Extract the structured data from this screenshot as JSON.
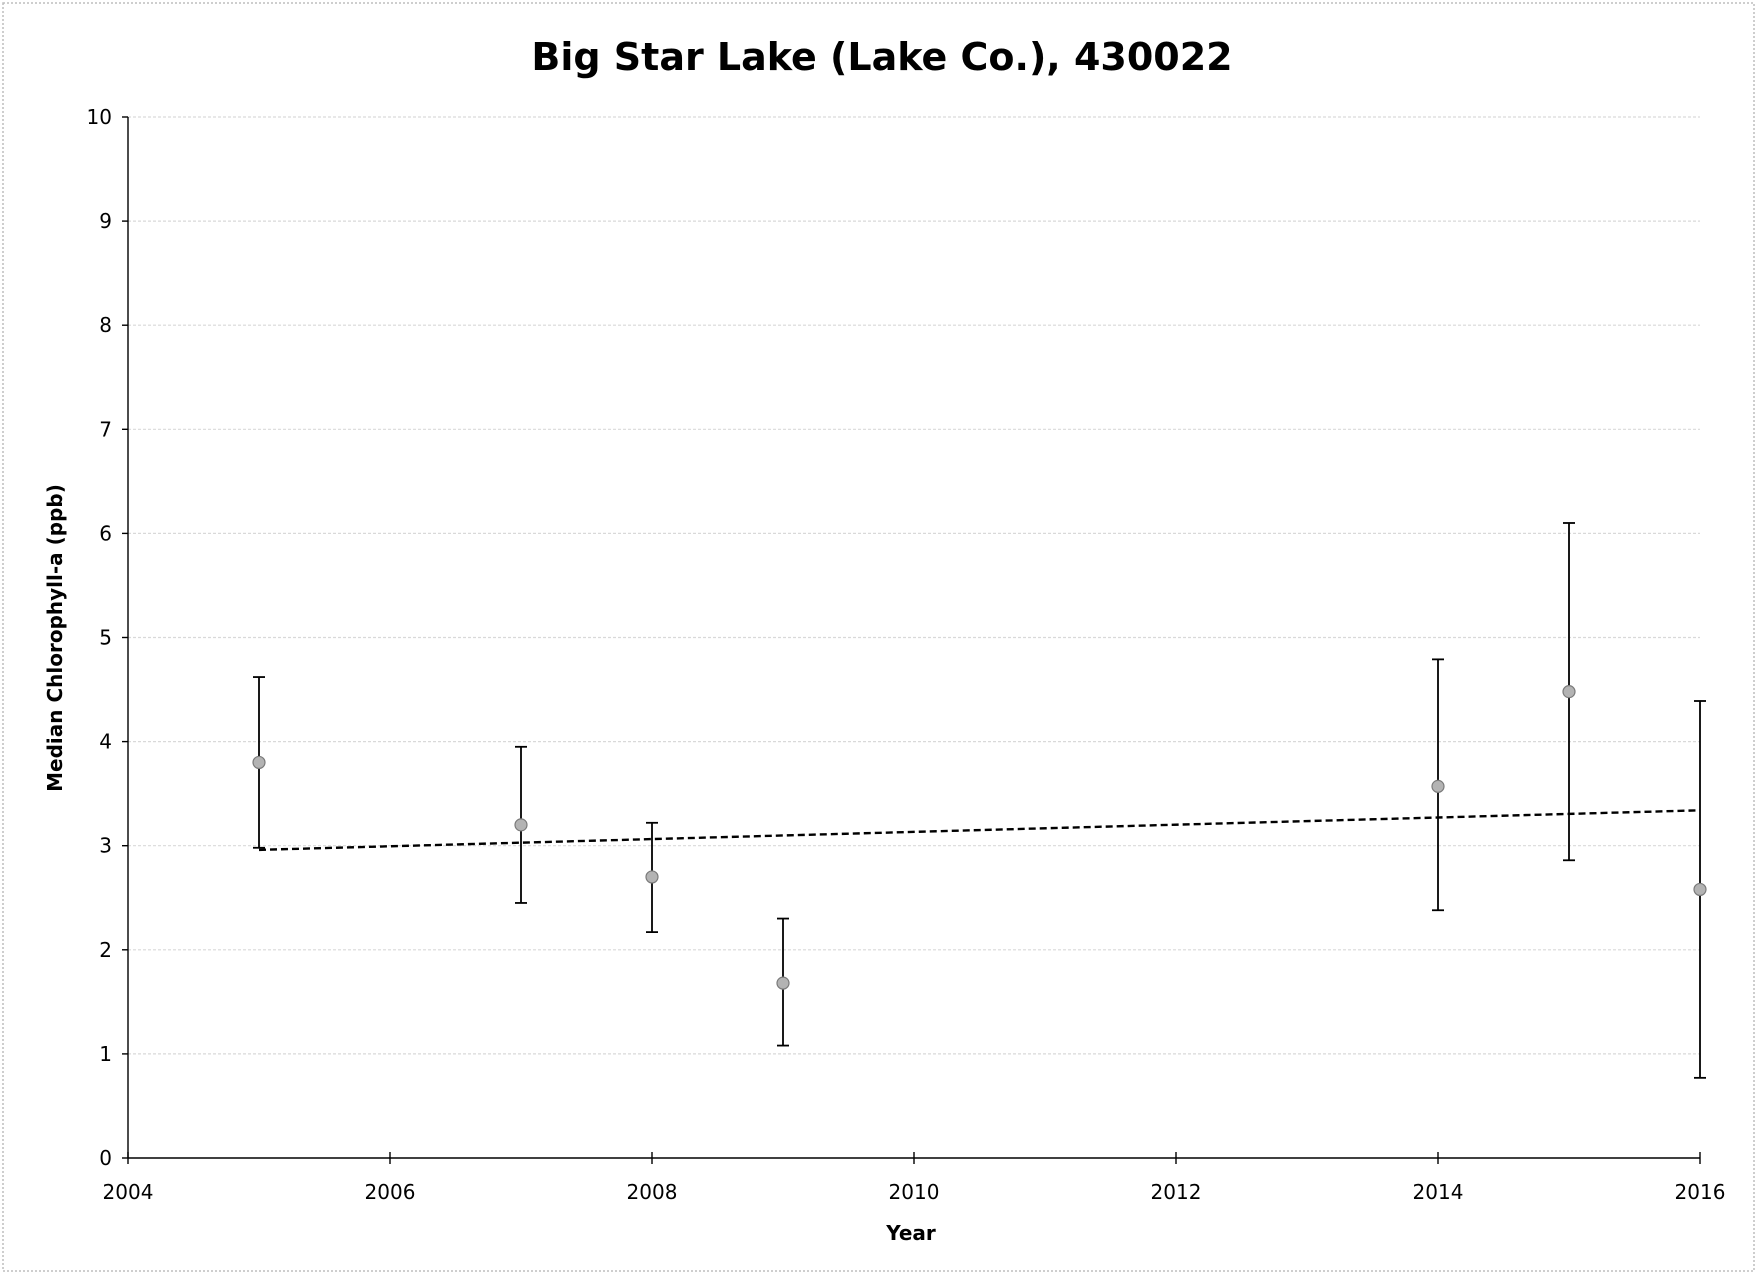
{
  "chart_data": {
    "type": "scatter",
    "title": "Big Star Lake (Lake Co.), 430022",
    "xlabel": "Year",
    "ylabel": "Median Chlorophyll-a (ppb)",
    "xlim": [
      2004,
      2016
    ],
    "ylim": [
      0,
      10
    ],
    "x_ticks": [
      "2004",
      "2006",
      "2008",
      "2010",
      "2012",
      "2014",
      "2016"
    ],
    "y_ticks": [
      "0",
      "1",
      "2",
      "3",
      "4",
      "5",
      "6",
      "7",
      "8",
      "9",
      "10"
    ],
    "grid": true,
    "legend": "none",
    "series": [
      {
        "points": [
          {
            "x": 2005,
            "y": 3.8,
            "low": 2.98,
            "high": 4.62
          },
          {
            "x": 2007,
            "y": 3.2,
            "low": 2.45,
            "high": 3.95
          },
          {
            "x": 2008,
            "y": 2.7,
            "low": 2.17,
            "high": 3.22
          },
          {
            "x": 2009,
            "y": 1.68,
            "low": 1.08,
            "high": 2.3
          },
          {
            "x": 2014,
            "y": 3.57,
            "low": 2.38,
            "high": 4.79
          },
          {
            "x": 2015,
            "y": 4.48,
            "low": 2.86,
            "high": 6.1
          },
          {
            "x": 2016,
            "y": 2.58,
            "low": 0.77,
            "high": 4.39
          }
        ]
      }
    ],
    "trendline": {
      "style": "dashed",
      "x": [
        2005,
        2016
      ],
      "y": [
        2.96,
        3.34
      ]
    }
  }
}
